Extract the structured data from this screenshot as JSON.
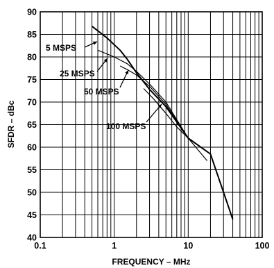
{
  "chart_data": {
    "type": "line",
    "title": "",
    "xlabel": "FREQUENCY – MHz",
    "ylabel": "SFDR – dBc",
    "xscale": "log",
    "xlim": [
      0.1,
      100
    ],
    "ylim": [
      40,
      90
    ],
    "grid": true,
    "x_ticks": [
      0.1,
      1,
      10,
      100
    ],
    "x_tick_labels": [
      "0.1",
      "1",
      "10",
      "100"
    ],
    "y_ticks": [
      40,
      45,
      50,
      55,
      60,
      65,
      70,
      75,
      80,
      85,
      90
    ],
    "y_tick_labels": [
      "40",
      "45",
      "50",
      "55",
      "60",
      "65",
      "70",
      "75",
      "80",
      "85",
      "90"
    ],
    "series": [
      {
        "name": "5 MSPS",
        "x": [
          0.5,
          0.8,
          1.2,
          1.5,
          2.0,
          3.0,
          5.0,
          10.0,
          20.0,
          40.0
        ],
        "y": [
          86.8,
          84.2,
          81.5,
          79.5,
          76.5,
          72.8,
          69.0,
          62.0,
          58.5,
          44.0
        ]
      },
      {
        "name": "25 MSPS",
        "x": [
          0.6,
          1.0,
          1.5,
          2.0,
          3.0,
          5.0,
          10.0
        ],
        "y": [
          81.5,
          80.0,
          78.5,
          76.8,
          74.0,
          70.0,
          62.0
        ]
      },
      {
        "name": "50 MSPS",
        "x": [
          1.2,
          1.5,
          2.0,
          3.0,
          5.0,
          10.0
        ],
        "y": [
          78.0,
          77.2,
          76.0,
          73.5,
          69.5,
          62.0
        ]
      },
      {
        "name": "100 MSPS",
        "x": [
          2.5,
          3.5,
          5.0,
          7.0,
          10.0,
          18.0
        ],
        "y": [
          73.0,
          70.5,
          67.5,
          64.5,
          62.0,
          57.0
        ]
      }
    ]
  }
}
